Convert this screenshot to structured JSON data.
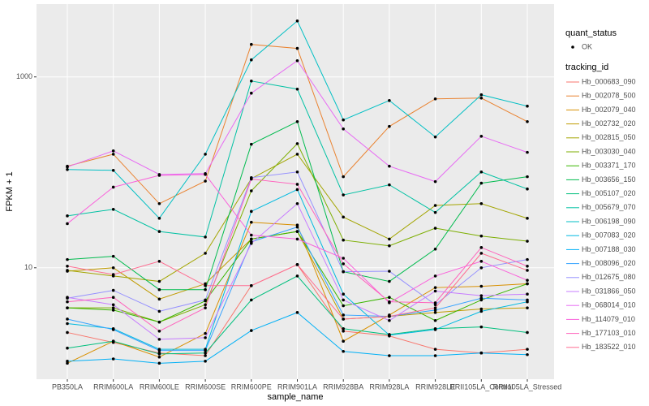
{
  "chart_data": {
    "type": "line",
    "x_label": "sample_name",
    "y_label": "FPKM + 1",
    "log_y": true,
    "grid": true,
    "ylim": [
      0.68,
      5800
    ],
    "yticks": [
      10,
      1000
    ],
    "categories": [
      "PB350LA",
      "RRIM600LA",
      "RRIM600LE",
      "RRIM600SE",
      "RRIM600PE",
      "RRIM901LA",
      "RRIM928BA",
      "RRIM928LA",
      "RRIM928LE",
      "RRII105LA_Control",
      "RRII105LA_Stressed"
    ],
    "point_legend": {
      "title": "quant_status",
      "label": "OK"
    },
    "legend_title": "tracking_id",
    "series": [
      {
        "name": "Hb_000683_090",
        "color": "#F8766D",
        "values": [
          2.1,
          1.65,
          1.28,
          1.2,
          6.5,
          10.8,
          2.17,
          1.93,
          1.4,
          1.28,
          1.4
        ]
      },
      {
        "name": "Hb_002078_500",
        "color": "#EA8331",
        "values": [
          116,
          155,
          47,
          81,
          2190,
          1990,
          90,
          303,
          589,
          600,
          340
        ]
      },
      {
        "name": "Hb_002079_040",
        "color": "#D89000",
        "values": [
          1.0,
          1.7,
          1.16,
          2.05,
          30,
          28,
          1.7,
          3.2,
          6.2,
          6.4,
          6.8
        ]
      },
      {
        "name": "Hb_002732_020",
        "color": "#C09B00",
        "values": [
          9.2,
          10,
          4.7,
          6.8,
          20,
          24,
          2.9,
          3.1,
          3.4,
          3.7,
          3.8
        ]
      },
      {
        "name": "Hb_002815_050",
        "color": "#A3A500",
        "values": [
          9.4,
          8.2,
          7.2,
          14.2,
          86,
          155,
          34,
          20,
          45,
          47,
          33
        ]
      },
      {
        "name": "Hb_003030_040",
        "color": "#7CAE00",
        "values": [
          3.8,
          3.8,
          2.7,
          4.1,
          64,
          200,
          19.5,
          17,
          26,
          21.5,
          19
        ]
      },
      {
        "name": "Hb_003371_170",
        "color": "#39B600",
        "values": [
          3.8,
          3.6,
          2.7,
          4.5,
          20,
          24,
          4.0,
          4.9,
          2.8,
          4.6,
          6.8
        ]
      },
      {
        "name": "Hb_003656_150",
        "color": "#00BB4E",
        "values": [
          12.2,
          13.2,
          5.9,
          5.9,
          197,
          340,
          9.1,
          7.2,
          15.7,
          77,
          90
        ]
      },
      {
        "name": "Hb_005107_020",
        "color": "#00BF7D",
        "values": [
          1.44,
          1.7,
          1.25,
          1.28,
          4.6,
          8.2,
          2.3,
          2.0,
          2.3,
          2.4,
          2.1
        ]
      },
      {
        "name": "Hb_005679_070",
        "color": "#00C1A3",
        "values": [
          35,
          41,
          24,
          21,
          906,
          745,
          58,
          74,
          38,
          101,
          67
        ]
      },
      {
        "name": "Hb_006198_090",
        "color": "#00BFC4",
        "values": [
          107,
          105,
          33,
          155,
          1510,
          3860,
          354,
          566,
          235,
          650,
          494
        ]
      },
      {
        "name": "Hb_007083_020",
        "color": "#00BAE0",
        "values": [
          2.6,
          2.3,
          1.4,
          1.4,
          39,
          66,
          5.3,
          1.97,
          2.25,
          3.5,
          4.4
        ]
      },
      {
        "name": "Hb_007188_030",
        "color": "#00B0F6",
        "values": [
          1.05,
          1.11,
          1.0,
          1.05,
          2.2,
          3.4,
          1.33,
          1.2,
          1.2,
          1.28,
          1.23
        ]
      },
      {
        "name": "Hb_008096_020",
        "color": "#35A2FF",
        "values": [
          2.9,
          2.25,
          1.36,
          1.36,
          18.7,
          26.7,
          3.2,
          3.1,
          3.6,
          4.8,
          4.6
        ]
      },
      {
        "name": "Hb_012675_080",
        "color": "#9590FF",
        "values": [
          4.8,
          5.8,
          3.5,
          4.6,
          88,
          101,
          9.1,
          9.2,
          4.1,
          10,
          12.2
        ]
      },
      {
        "name": "Hb_031866_050",
        "color": "#C77CFF",
        "values": [
          4.9,
          4.1,
          1.78,
          1.85,
          18,
          47,
          4.6,
          2.8,
          5.7,
          5.1,
          5.3
        ]
      },
      {
        "name": "Hb_068014_010",
        "color": "#E76BF3",
        "values": [
          114,
          168,
          95,
          97,
          676,
          1479,
          285,
          116,
          80,
          239,
          162
        ]
      },
      {
        "name": "Hb_114079_010",
        "color": "#FA62DB",
        "values": [
          29,
          70,
          93,
          95,
          22,
          20,
          12.6,
          4.3,
          8.2,
          11.7,
          7.4
        ]
      },
      {
        "name": "Hb_177103_010",
        "color": "#FF62BC",
        "values": [
          4.4,
          4.9,
          2.17,
          3.8,
          85,
          75,
          11,
          4.4,
          4.3,
          16.3,
          10.4
        ]
      },
      {
        "name": "Hb_183522_010",
        "color": "#FF6C91",
        "values": [
          10.4,
          8.5,
          11.7,
          6.5,
          6.5,
          10.8,
          2.9,
          3.1,
          3.8,
          14.2,
          9.4
        ]
      }
    ]
  }
}
